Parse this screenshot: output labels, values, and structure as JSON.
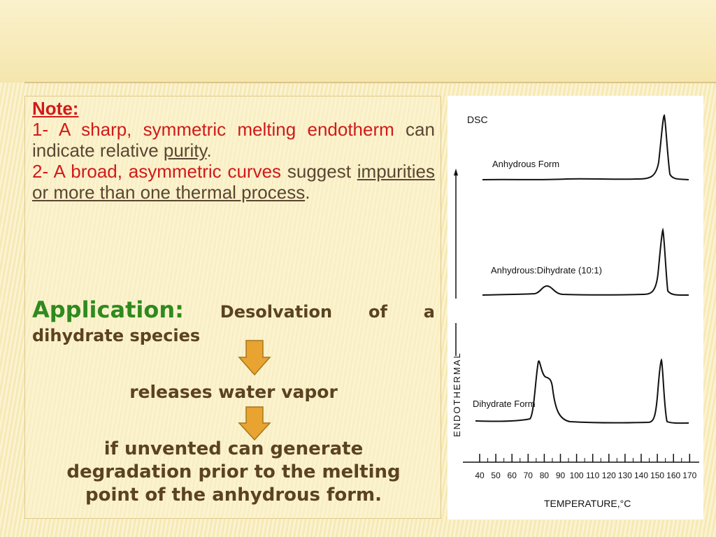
{
  "note": {
    "title": "Note:",
    "item1": {
      "prefix": "1-",
      "highlight": "A sharp, symmetric melting endotherm",
      "text": " can indicate relative ",
      "underlined": "purity",
      "end": "."
    },
    "item2": {
      "prefix": "2-",
      "highlight": "A broad, asymmetric curves",
      "text": " suggest ",
      "underlined": "impurities or more than one thermal process",
      "end": "."
    }
  },
  "application": {
    "label": "Application:",
    "text": " Desolvation of a dihydrate species",
    "step1": "releases water vapor",
    "step2_line1": "if unvented can generate",
    "step2_line2": "degradation prior to the melting",
    "step2_line3": "point of the anhydrous form."
  },
  "figure": {
    "title": "DSC",
    "y_axis_label": "ENDOTHERMAL",
    "x_axis_label": "TEMPERATURE,°C",
    "x_ticks": [
      "40",
      "50",
      "60",
      "70",
      "80",
      "90",
      "100",
      "110",
      "120",
      "130",
      "140",
      "150",
      "160",
      "170"
    ],
    "curves": [
      {
        "name": "Anhydrous Form"
      },
      {
        "name": "Anhydrous:Dihydrate (10:1)"
      },
      {
        "name": "Dihydrate Form"
      }
    ],
    "arrow_color": "#e8a330"
  }
}
